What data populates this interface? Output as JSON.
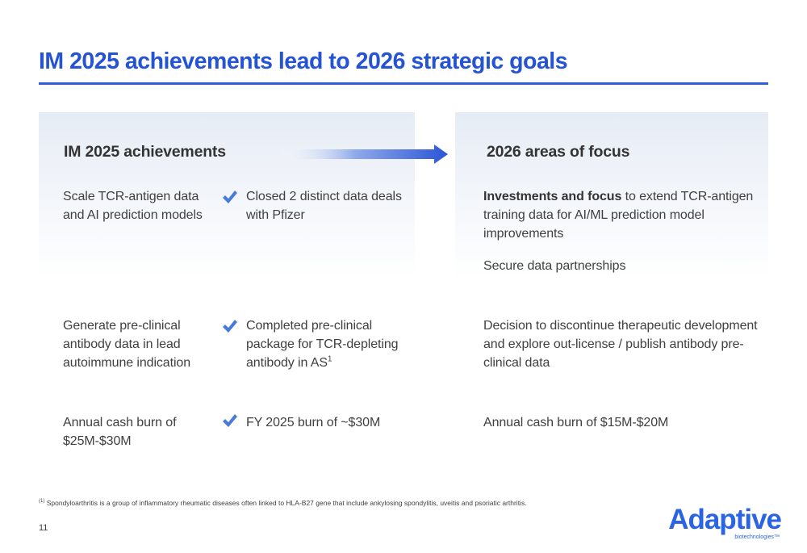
{
  "slide": {
    "title": "IM 2025 achievements lead to 2026 strategic goals",
    "page_number": "11"
  },
  "left_panel": {
    "heading": "IM 2025 achievements"
  },
  "right_panel": {
    "heading": "2026 areas of focus"
  },
  "rows": [
    {
      "goal": "Scale TCR-antigen data and AI prediction models",
      "achievement": "Closed 2 distinct data deals with Pfizer",
      "focus_bold": "Investments and focus",
      "focus": "to extend TCR-antigen training data for AI/ML prediction model improvements",
      "focus_secondary": "Secure data partnerships"
    },
    {
      "goal": "Generate pre-clinical antibody data in lead autoimmune indication",
      "achievement": "Completed pre-clinical package for TCR-depleting antibody in AS",
      "achievement_sup": "1",
      "focus": "Decision to discontinue therapeutic development and explore out-license / publish antibody pre-clinical data"
    },
    {
      "goal": "Annual cash burn of $25M-$30M",
      "achievement": "FY 2025 burn of ~$30M",
      "focus": "Annual cash burn of $15M-$20M"
    }
  ],
  "footnote": {
    "marker": "(1)",
    "text": "Spondyloarthritis is a group of inflammatory rheumatic diseases often linked to HLA-B27 gene that include ankylosing spondylitis, uveitis and psoriatic arthritis."
  },
  "logo": {
    "name": "Adaptive",
    "sub": "biotechnologies™"
  },
  "icons": {
    "check": "check-icon",
    "arrow": "right-arrow-icon"
  },
  "colors": {
    "title_blue": "#2453d3",
    "check_blue": "#4a7bd9",
    "logo_blue": "#2a63e4",
    "panel_tint": "#e6ecf5"
  }
}
